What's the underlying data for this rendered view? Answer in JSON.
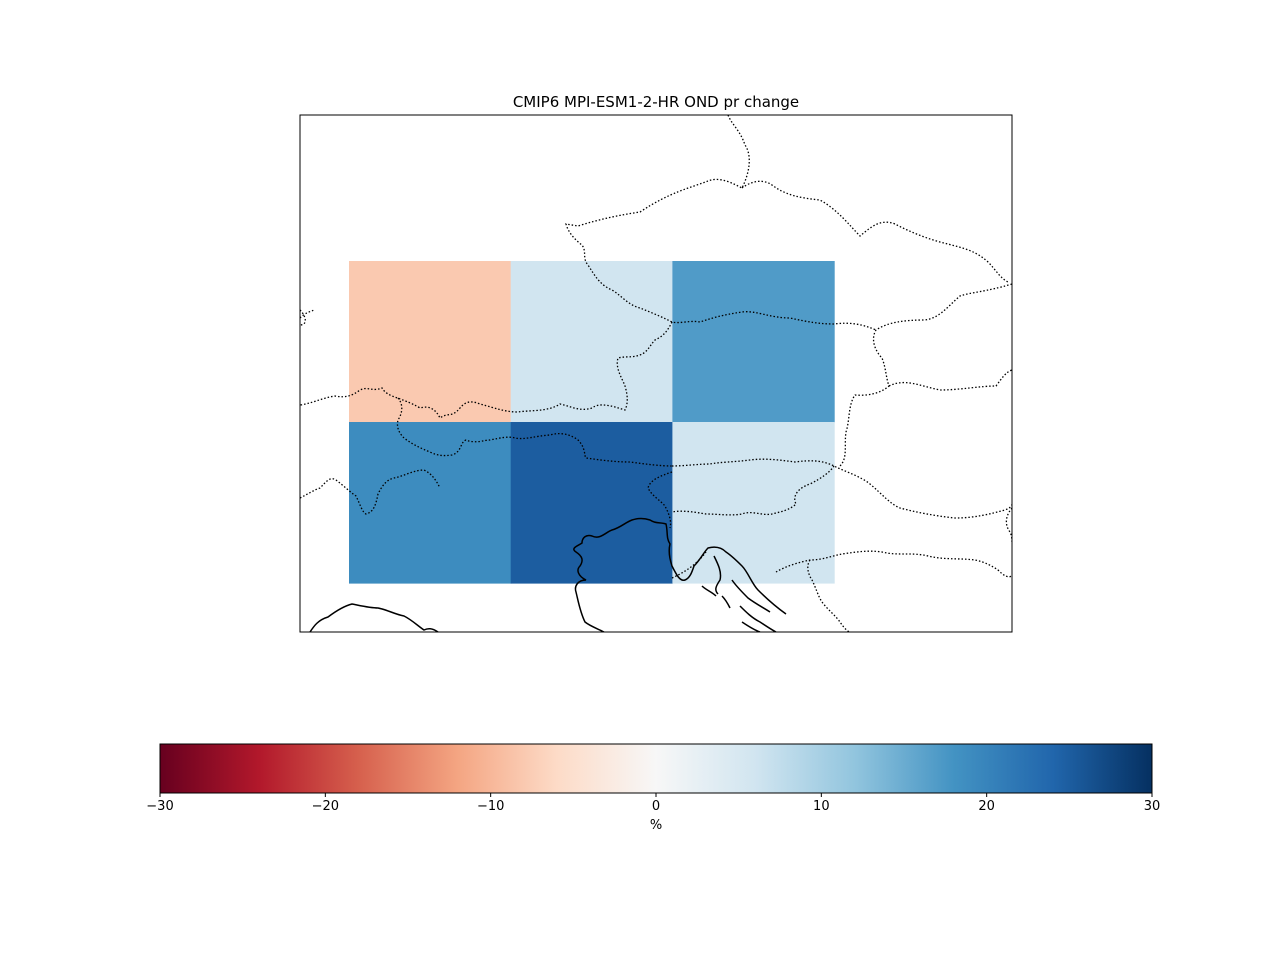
{
  "chart_data": {
    "type": "heatmap",
    "title": "CMIP6 MPI-ESM1-2-HR OND pr change",
    "grid": [
      [
        -8,
        6,
        17
      ],
      [
        19,
        25,
        6
      ]
    ],
    "colorbar": {
      "label": "%",
      "range": [
        -30,
        30
      ],
      "ticks": [
        -30,
        -20,
        -10,
        0,
        10,
        20,
        30
      ],
      "tick_labels": [
        "−30",
        "−20",
        "−10",
        "0",
        "10",
        "20",
        "30"
      ],
      "colormap": "RdBu",
      "colors": [
        "#67001f",
        "#b2182b",
        "#d6604d",
        "#f4a582",
        "#fddbc7",
        "#f7f7f7",
        "#d1e5f0",
        "#92c5de",
        "#4393c3",
        "#2166ac",
        "#053061"
      ],
      "orientation": "horizontal",
      "placement": "bottom"
    },
    "map_features": [
      "coastlines",
      "country borders (dotted)"
    ]
  }
}
